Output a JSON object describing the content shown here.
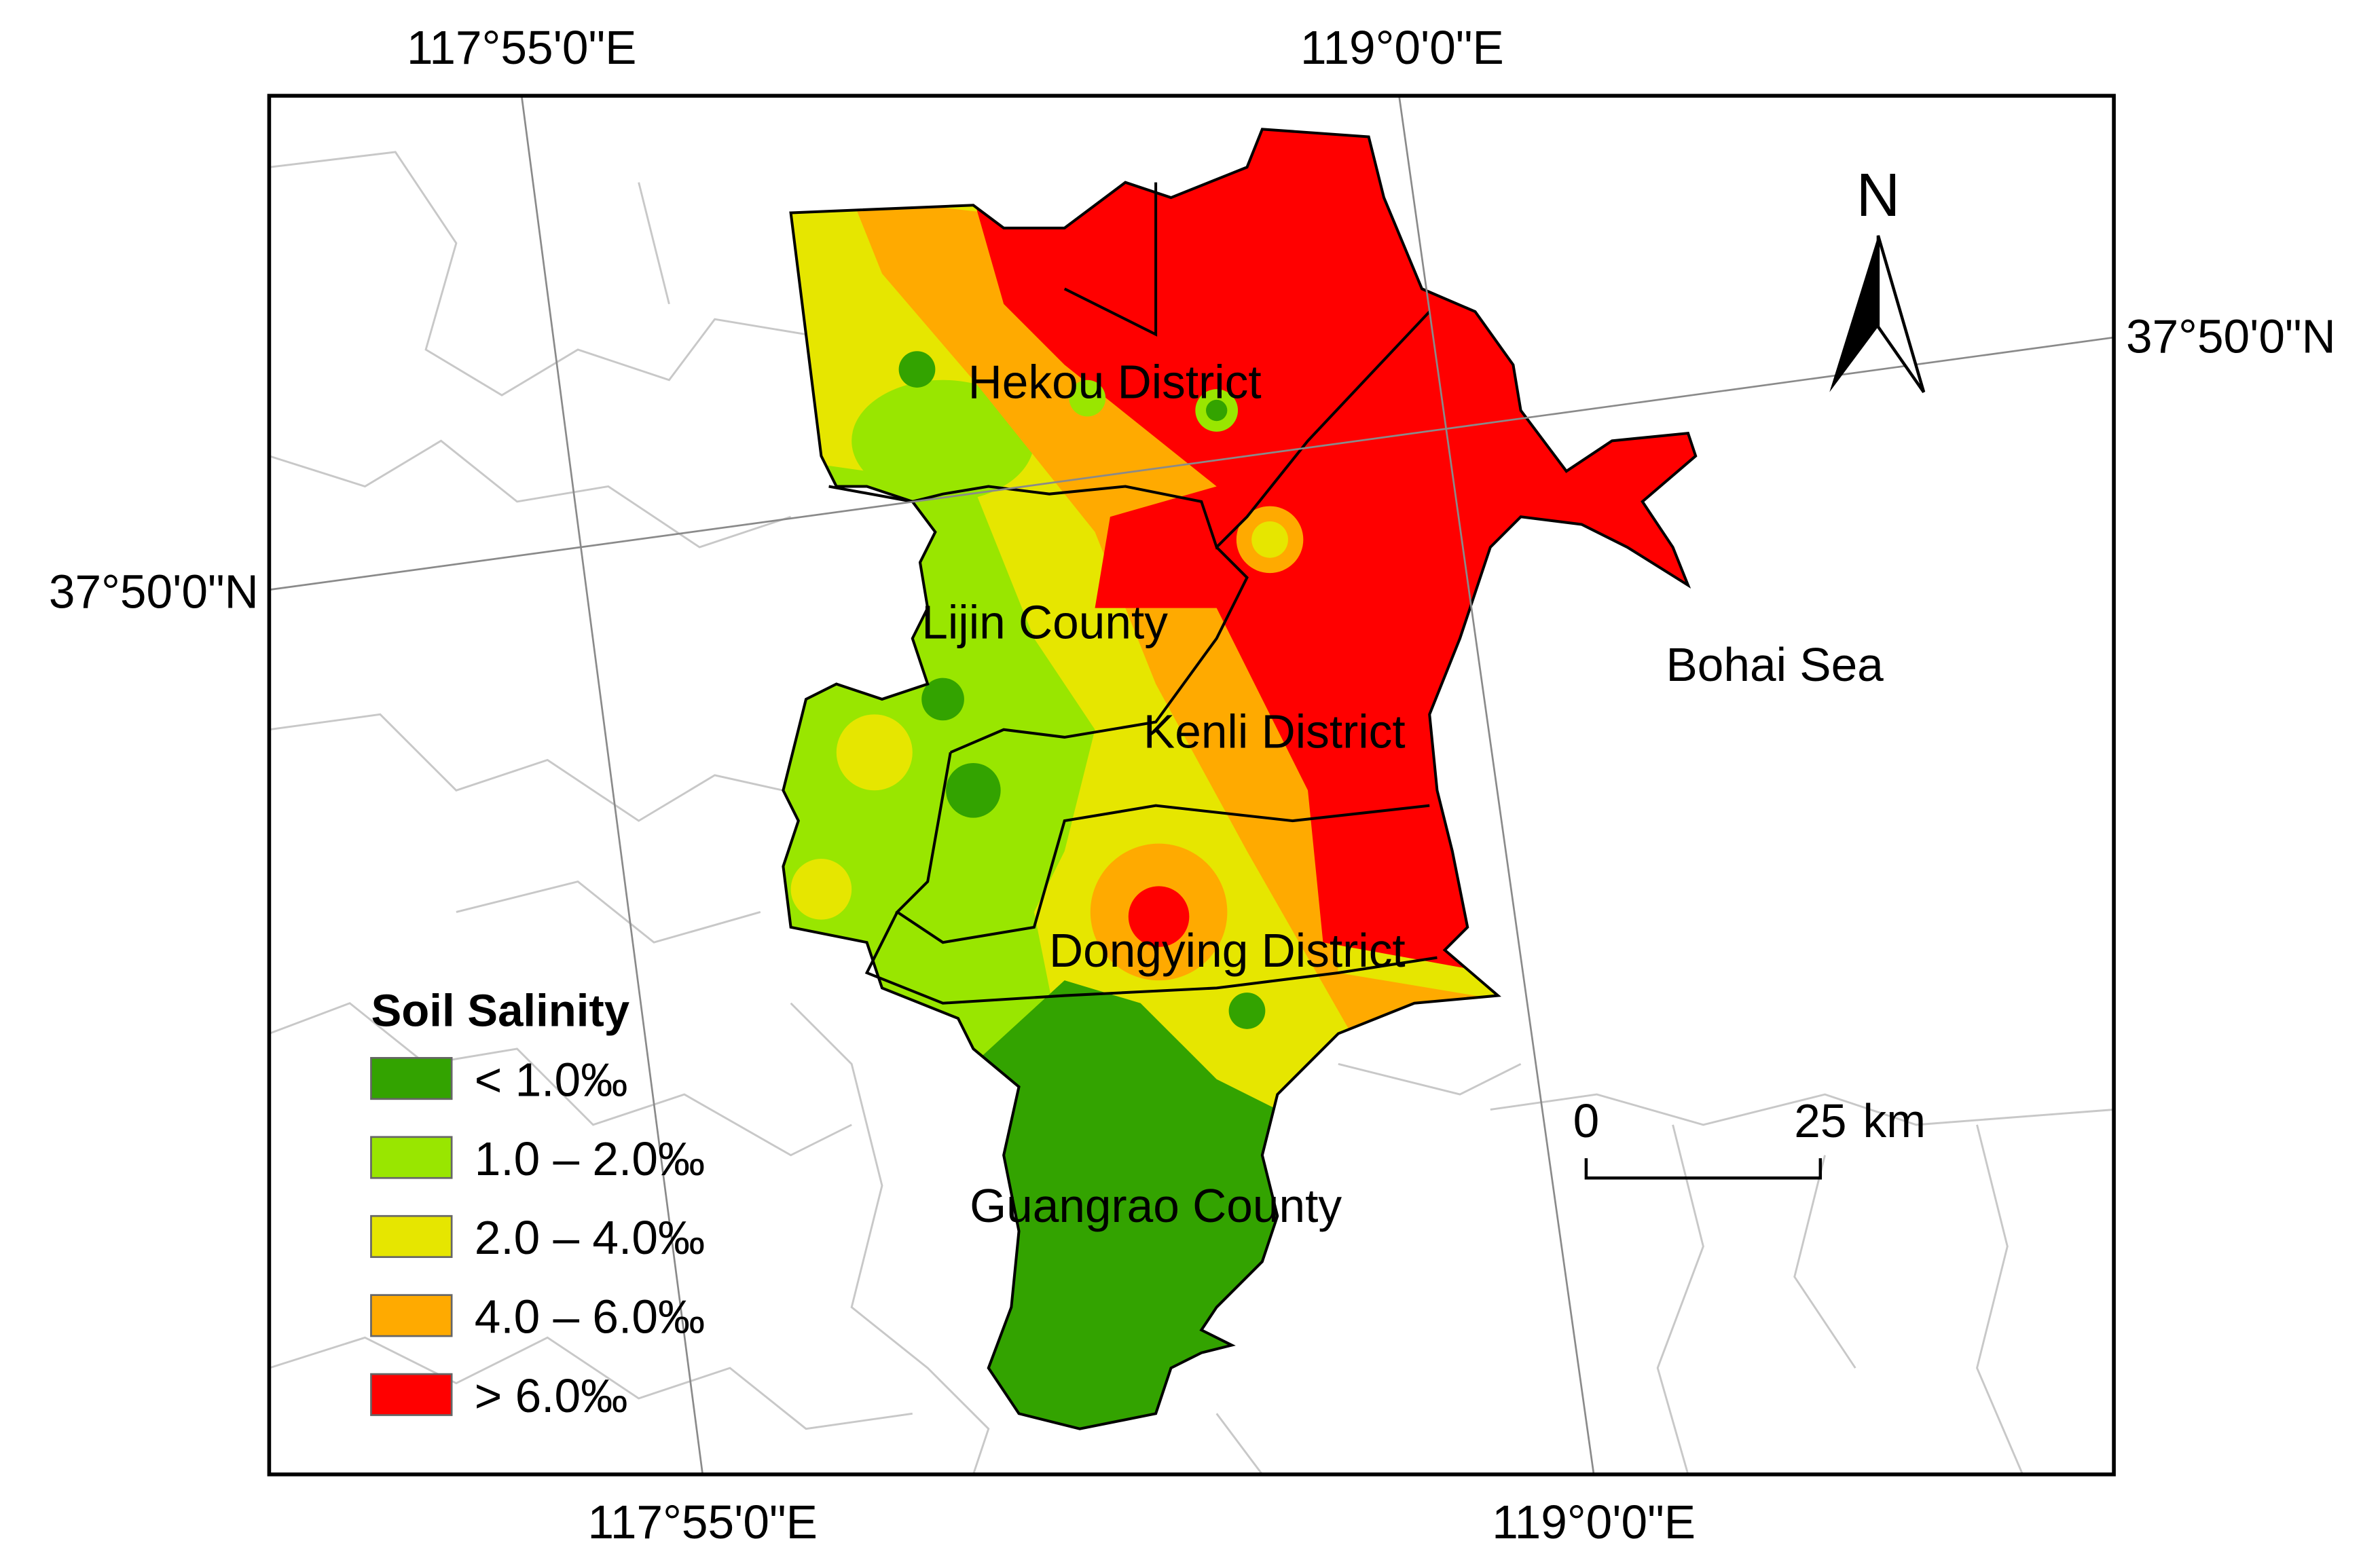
{
  "graticule": {
    "top": [
      "117°55'0\"E",
      "119°0'0\"E"
    ],
    "bottom": [
      "117°55'0\"E",
      "119°0'0\"E"
    ],
    "left": "37°50'0\"N",
    "right": "37°50'0\"N"
  },
  "places": [
    "Hekou District",
    "Lijin County",
    "Kenli District",
    "Dongying District",
    "Guangrao County"
  ],
  "sea": "Bohai Sea",
  "north": "N",
  "legend": {
    "title": "Soil Salinity",
    "items": [
      {
        "label": "< 1.0‰",
        "color": "#33a300"
      },
      {
        "label": "1.0 – 2.0‰",
        "color": "#99e600"
      },
      {
        "label": "2.0 – 4.0‰",
        "color": "#e6e600"
      },
      {
        "label": "4.0 – 6.0‰",
        "color": "#ffaa00"
      },
      {
        "label": "> 6.0‰",
        "color": "#ff0000"
      }
    ]
  },
  "scale_bar": {
    "labels": [
      "0",
      "25"
    ],
    "unit": "km"
  }
}
